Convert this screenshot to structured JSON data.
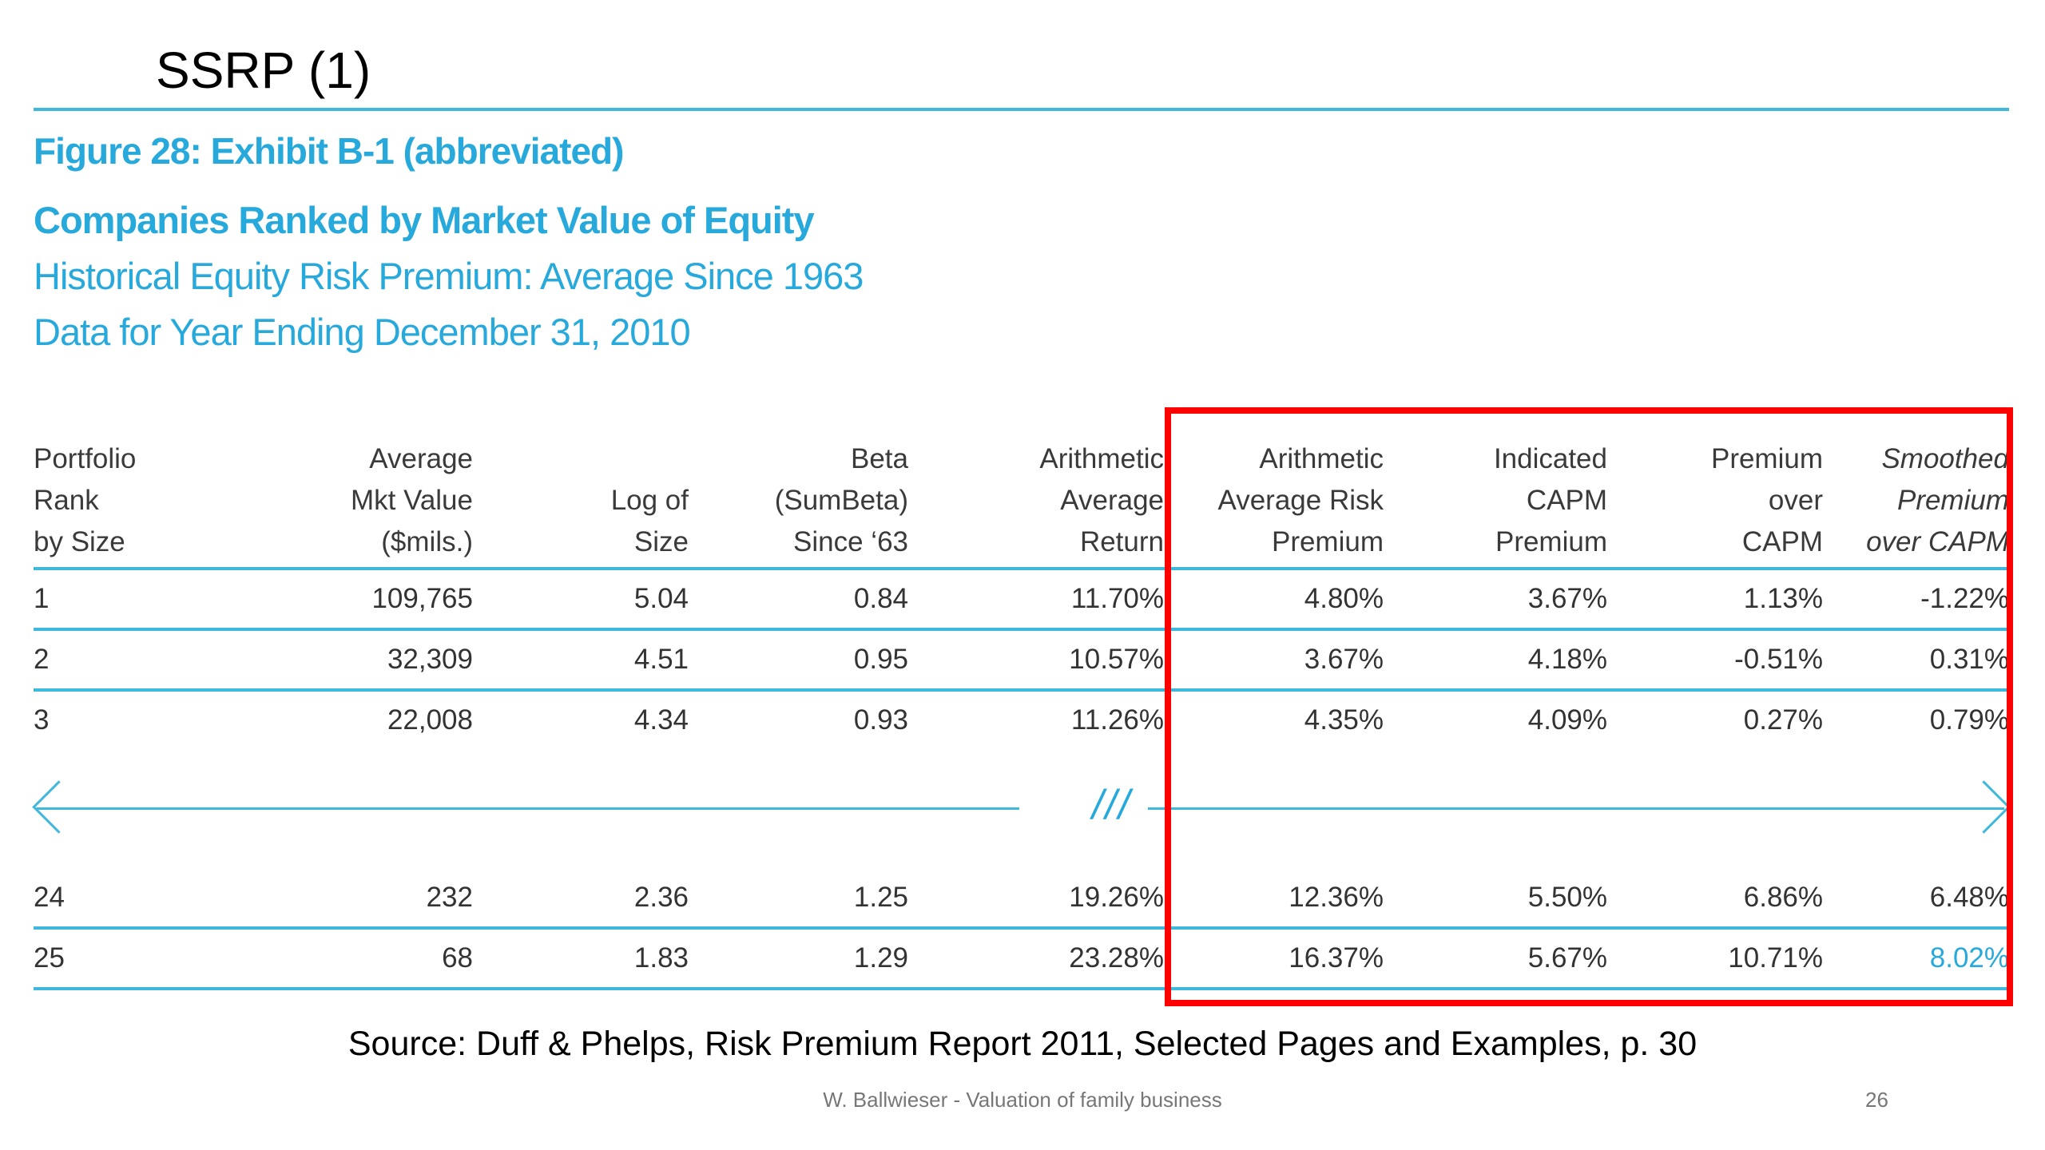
{
  "slide": {
    "title": "SSRP (1)",
    "source": "Source: Duff & Phelps, Risk Premium Report 2011, Selected Pages and Examples, p. 30",
    "footer": "W. Ballwieser - Valuation of family business",
    "page_number": "26"
  },
  "figure": {
    "caption": "Figure 28: Exhibit B-1 (abbreviated)",
    "heading": "Companies Ranked by Market Value of Equity",
    "subheading": "Historical Equity Risk Premium: Average Since 1963",
    "data_note": "Data for Year Ending December 31, 2010",
    "gap_marker": "///"
  },
  "table": {
    "headers": [
      [
        "Portfolio",
        "Rank",
        "by Size"
      ],
      [
        "Average",
        "Mkt Value",
        "($mils.)"
      ],
      [
        "",
        "Log of",
        "Size"
      ],
      [
        "Beta",
        "(SumBeta)",
        "Since ‘63"
      ],
      [
        "Arithmetic",
        "Average",
        "Return"
      ],
      [
        "Arithmetic",
        "Average Risk",
        "Premium"
      ],
      [
        "Indicated",
        "CAPM",
        "Premium"
      ],
      [
        "Premium",
        "over",
        "CAPM"
      ],
      [
        "Smoothed",
        "Premium",
        "over CAPM"
      ]
    ],
    "rows_top": [
      [
        "1",
        "109,765",
        "5.04",
        "0.84",
        "11.70%",
        "4.80%",
        "3.67%",
        "1.13%",
        "-1.22%"
      ],
      [
        "2",
        "32,309",
        "4.51",
        "0.95",
        "10.57%",
        "3.67%",
        "4.18%",
        "-0.51%",
        "0.31%"
      ],
      [
        "3",
        "22,008",
        "4.34",
        "0.93",
        "11.26%",
        "4.35%",
        "4.09%",
        "0.27%",
        "0.79%"
      ]
    ],
    "rows_bottom": [
      [
        "24",
        "232",
        "2.36",
        "1.25",
        "19.26%",
        "12.36%",
        "5.50%",
        "6.86%",
        "6.48%"
      ],
      [
        "25",
        "68",
        "1.83",
        "1.29",
        "23.28%",
        "16.37%",
        "5.67%",
        "10.71%",
        "8.02%"
      ]
    ]
  },
  "colors": {
    "accent": "#27a9dc",
    "rule": "#3fb8de",
    "highlight_box": "#ff0000"
  }
}
